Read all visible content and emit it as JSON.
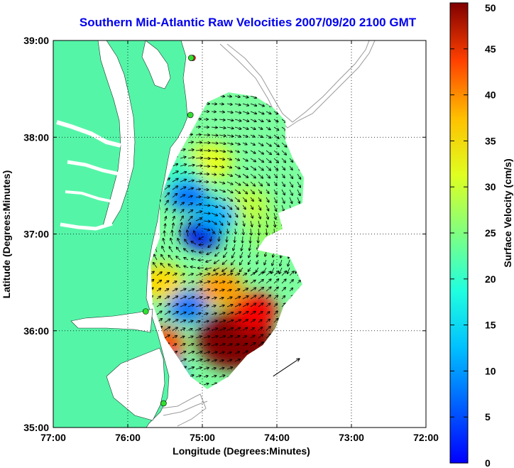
{
  "title": "Southern Mid-Atlantic Raw Velocities 2007/09/20 2100 GMT",
  "map": {
    "x_axis_label": "Longitude (Degrees:Minutes)",
    "y_axis_label": "Latitude (Degrees:Minutes)",
    "lon_range": [
      -77,
      -72
    ],
    "lat_range": [
      35,
      39
    ],
    "lon_ticks": [
      {
        "value": -77,
        "label": "77:00"
      },
      {
        "value": -76,
        "label": "76:00"
      },
      {
        "value": -75,
        "label": "75:00"
      },
      {
        "value": -74,
        "label": "74:00"
      },
      {
        "value": -73,
        "label": "73:00"
      },
      {
        "value": -72,
        "label": "72:00"
      }
    ],
    "lat_ticks": [
      {
        "value": 39,
        "label": "39:00"
      },
      {
        "value": 38,
        "label": "38:00"
      },
      {
        "value": 37,
        "label": "37:00"
      },
      {
        "value": 36,
        "label": "36:00"
      },
      {
        "value": 35,
        "label": "35:00"
      }
    ],
    "grid": "dotted",
    "colors": {
      "land": "#55f5a8",
      "water": "#ffffff",
      "bathymetry": "#9a9a9a",
      "vectors": "#000000"
    },
    "stations": [
      {
        "lon": -75.13,
        "lat": 38.82,
        "color": "#ff2020"
      },
      {
        "lon": -75.15,
        "lat": 38.82,
        "color": "#30e030"
      },
      {
        "lon": -75.16,
        "lat": 38.23,
        "color": "#30e030"
      },
      {
        "lon": -75.76,
        "lat": 36.2,
        "color": "#30e030"
      },
      {
        "lon": -75.52,
        "lat": 35.25,
        "color": "#30e030"
      }
    ],
    "reference_arrow": {
      "lon": -74.05,
      "lat": 35.53,
      "u": 0.35,
      "v": 0.18
    }
  },
  "colorbar": {
    "label": "Surface Velocity (cm/s)",
    "unit": "cm/s",
    "min": 0,
    "max": 50,
    "ticks": [
      "0",
      "5",
      "10",
      "15",
      "20",
      "25",
      "30",
      "35",
      "40",
      "45",
      "50"
    ],
    "colormap": "jet"
  },
  "velocity_field": {
    "type": "heatmap",
    "description_units": "cm/s",
    "hotspots": [
      {
        "lon": -74.55,
        "lat": 35.9,
        "speed": 50
      },
      {
        "lon": -74.3,
        "lat": 36.2,
        "speed": 44
      },
      {
        "lon": -74.75,
        "lat": 36.45,
        "speed": 36
      },
      {
        "lon": -75.55,
        "lat": 35.85,
        "speed": 40
      },
      {
        "lon": -75.55,
        "lat": 36.5,
        "speed": 33
      },
      {
        "lon": -74.9,
        "lat": 37.75,
        "speed": 30
      },
      {
        "lon": -74.4,
        "lat": 37.3,
        "speed": 28
      },
      {
        "lon": -74.1,
        "lat": 37.0,
        "speed": 26
      },
      {
        "lon": -75.3,
        "lat": 37.6,
        "speed": 22
      }
    ],
    "lows": [
      {
        "lon": -75.0,
        "lat": 37.0,
        "speed": 5
      },
      {
        "lon": -75.2,
        "lat": 37.4,
        "speed": 12
      },
      {
        "lon": -75.5,
        "lat": 35.55,
        "speed": 12
      },
      {
        "lon": -74.8,
        "lat": 37.2,
        "speed": 15
      },
      {
        "lon": -75.2,
        "lat": 36.25,
        "speed": 12
      }
    ]
  }
}
